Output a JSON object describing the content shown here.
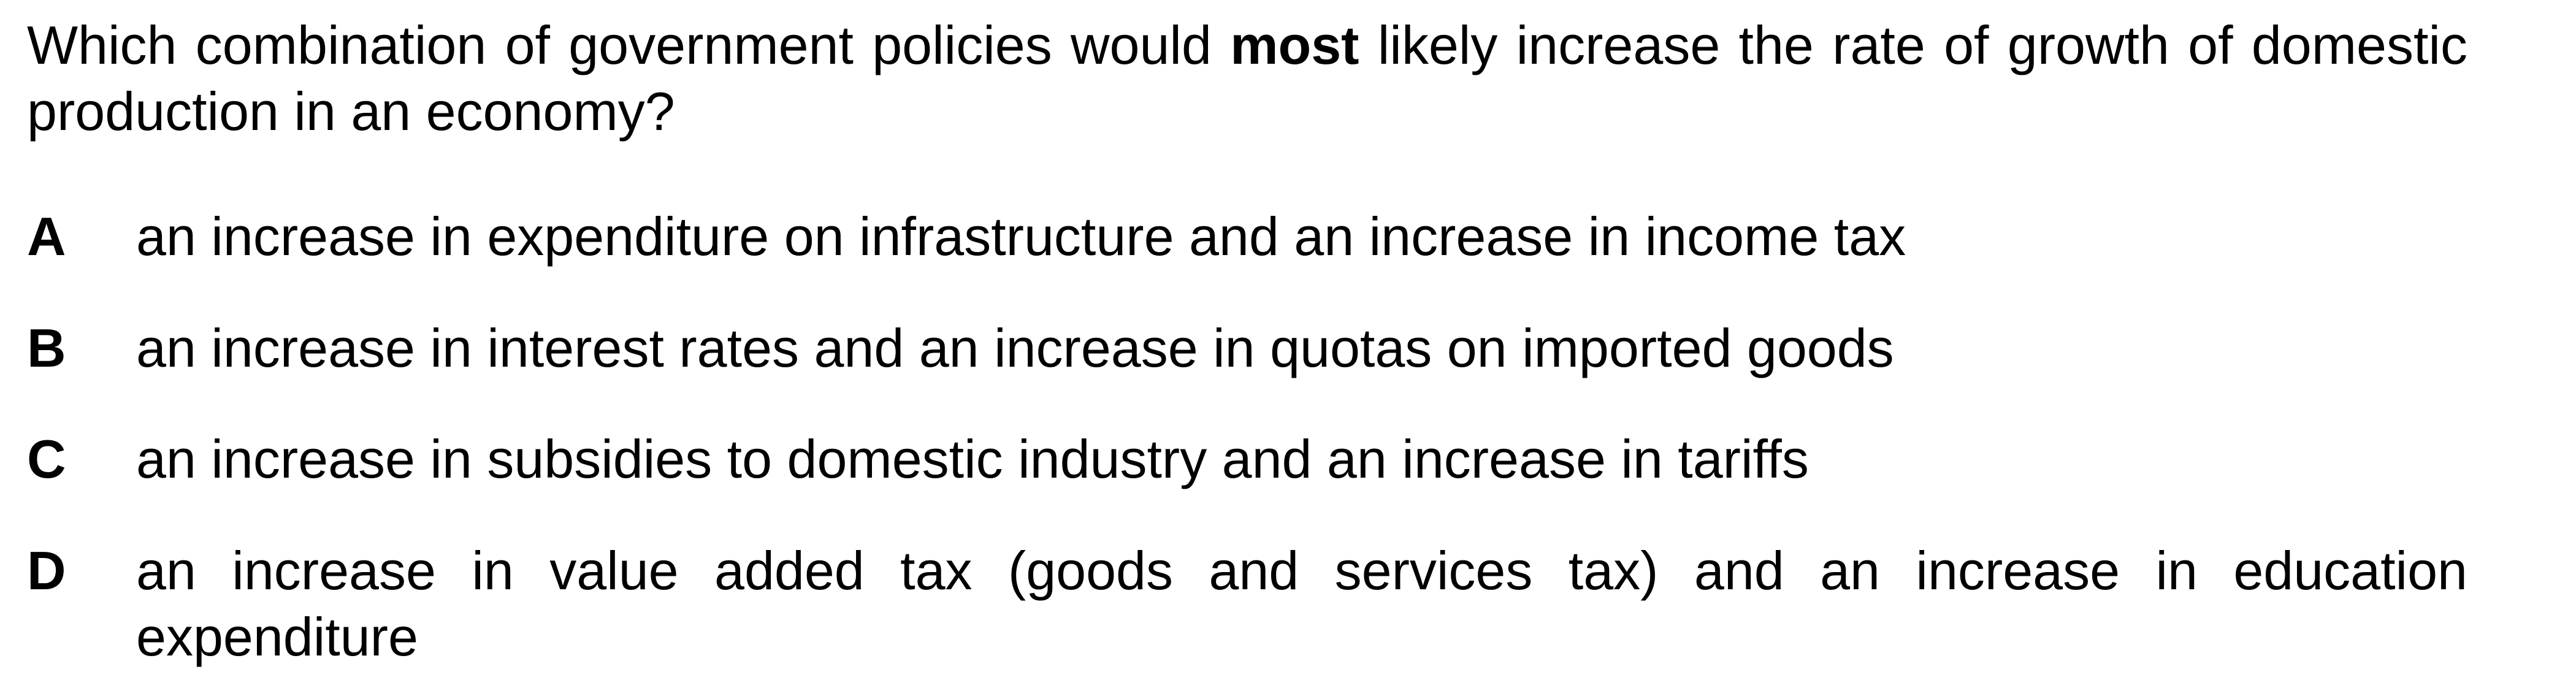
{
  "question": {
    "before_emphasis": "Which combination of government policies would ",
    "emphasis": "most",
    "after_emphasis": " likely increase the rate of growth of domestic production in an economy?"
  },
  "options": [
    {
      "letter": "A",
      "text": "an increase in expenditure on infrastructure and an increase in income tax"
    },
    {
      "letter": "B",
      "text": "an increase in interest rates and an increase in quotas on imported goods"
    },
    {
      "letter": "C",
      "text": "an increase in subsidies to domestic industry and an increase in tariffs"
    },
    {
      "letter": "D",
      "text": "an increase in value added tax (goods and services tax) and an increase in education expenditure"
    }
  ]
}
